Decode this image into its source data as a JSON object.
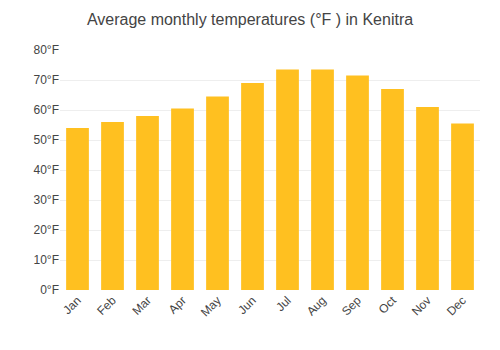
{
  "chart_data": {
    "type": "bar",
    "title": "Average monthly temperatures (°F ) in Kenitra",
    "categories": [
      "Jan",
      "Feb",
      "Mar",
      "Apr",
      "May",
      "Jun",
      "Jul",
      "Aug",
      "Sep",
      "Oct",
      "Nov",
      "Dec"
    ],
    "values": [
      54,
      56,
      58,
      60.5,
      64.5,
      69,
      73.5,
      73.5,
      71.5,
      67,
      61,
      55.5
    ],
    "color": "#FFC020",
    "ylim": [
      0,
      80
    ],
    "yticks": [
      {
        "value": 0,
        "label": "0°F"
      },
      {
        "value": 10,
        "label": "10°F"
      },
      {
        "value": 20,
        "label": "20°F"
      },
      {
        "value": 30,
        "label": "30°F"
      },
      {
        "value": 40,
        "label": "40°F"
      },
      {
        "value": 50,
        "label": "50°F"
      },
      {
        "value": 60,
        "label": "60°F"
      },
      {
        "value": 70,
        "label": "70°F"
      },
      {
        "value": 80,
        "label": "80°F"
      }
    ],
    "grid": true
  }
}
